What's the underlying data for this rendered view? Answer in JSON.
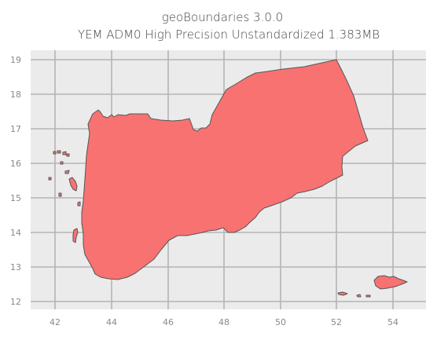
{
  "title": {
    "line1": "geoBoundaries 3.0.0",
    "line2": "YEM ADM0 High Precision Unstandardized 1.383MB"
  },
  "map": {
    "fill_color": "#f87272",
    "background_color": "#ebebeb",
    "x_ticks": [
      "42",
      "44",
      "46",
      "48",
      "50",
      "52",
      "54"
    ],
    "y_ticks": [
      "12",
      "13",
      "14",
      "15",
      "16",
      "17",
      "18",
      "19"
    ]
  }
}
